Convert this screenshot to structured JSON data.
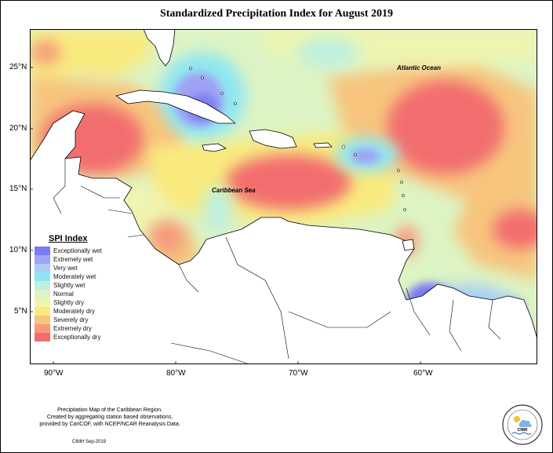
{
  "title": "Standardized Precipitation Index for August 2019",
  "axes": {
    "lat_labels": [
      "25°N",
      "20°N",
      "15°N",
      "10°N",
      "5°N"
    ],
    "lon_labels": [
      "90°W",
      "80°W",
      "70°W",
      "60°W"
    ]
  },
  "map_labels": {
    "atlantic": "Atlantic Ocean",
    "caribbean": "Caribbean Sea"
  },
  "legend": {
    "title": "SPI Index",
    "items": [
      {
        "label": "Exceptionally wet",
        "color": "#7b7bf2"
      },
      {
        "label": "Extremely wet",
        "color": "#9ea3f5"
      },
      {
        "label": "Very wet",
        "color": "#a9cff6"
      },
      {
        "label": "Moderately wet",
        "color": "#8fe6f2"
      },
      {
        "label": "Slightly wet",
        "color": "#bff0df"
      },
      {
        "label": "Normal",
        "color": "#ddf4c4"
      },
      {
        "label": "Slightly dry",
        "color": "#eef5b0"
      },
      {
        "label": "Moderately dry",
        "color": "#f9ea7e"
      },
      {
        "label": "Severely dry",
        "color": "#f7c57e"
      },
      {
        "label": "Extremely dry",
        "color": "#f59b7a"
      },
      {
        "label": "Exceptionally dry",
        "color": "#f26e6e"
      }
    ]
  },
  "credit": {
    "line1": "Precipitation Map of the Caribbean Region.",
    "line2": "Created by aggregating station based observations,",
    "line3": "provided by CariCOF, with NCEP/NCAR Reanalysis Data.",
    "date": "CIMH Sep-2019"
  },
  "logo_text": "CIMH"
}
